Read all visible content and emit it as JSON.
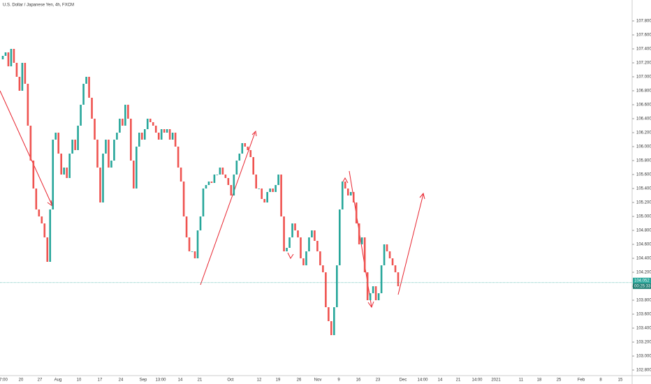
{
  "chart_data": {
    "type": "candle",
    "title": "U.S. Dollar / Japanese Yen, 4h, FXCM",
    "values": [
      107.25,
      107.3,
      107.35,
      107.15,
      107.4,
      107.2,
      107,
      106.8,
      107.2,
      106.9,
      106.3,
      105.8,
      105.4,
      105.1,
      105,
      104.9,
      104.7,
      104.35,
      105.1,
      106.1,
      106.2,
      105.9,
      105.6,
      105.7,
      105.55,
      105.9,
      106.1,
      105.95,
      106.3,
      106.6,
      106.9,
      107,
      106.7,
      106.4,
      106.1,
      105.7,
      105.2,
      105.9,
      106.1,
      105.7,
      105.8,
      106.1,
      106.2,
      106.4,
      106.3,
      106.6,
      106.4,
      105.8,
      105.4,
      106,
      106.2,
      106.1,
      106.25,
      106.4,
      106.35,
      106.3,
      106.2,
      106.1,
      106.25,
      106.2,
      106.25,
      106.1,
      106.2,
      106,
      105.7,
      105.5,
      105,
      104.7,
      104.5,
      104.5,
      104.4,
      104.8,
      105,
      105.4,
      105.45,
      105.5,
      105.48,
      105.6,
      105.6,
      105.7,
      105.6,
      105.55,
      105.45,
      105.3,
      105.6,
      105.8,
      105.9,
      106.05,
      106,
      105.95,
      105.85,
      105.6,
      105.4,
      105.4,
      105.25,
      105.2,
      105.35,
      105.4,
      105.35,
      105.45,
      105.6,
      105,
      104.5,
      104.55,
      104.7,
      104.9,
      104.8,
      104.7,
      104.4,
      104.3,
      104.5,
      104.7,
      104.8,
      104.65,
      104.5,
      104.3,
      104.2,
      103.7,
      103.5,
      103.3,
      103.7,
      104.3,
      105.1,
      105.5,
      105.4,
      105.3,
      105.35,
      105.2,
      104.9,
      104.6,
      104.7,
      104.2,
      103.8,
      103.9,
      104,
      103.8,
      103.9,
      104.3,
      104.6,
      104.5,
      104.4,
      104.3,
      104.2,
      104
    ],
    "up_color": "#26a69a",
    "down_color": "#ef5350",
    "last_price": 104.052,
    "countdown": "00:25:33",
    "last_price_color": "#26a69a",
    "ylim": [
      102.72,
      108.1
    ],
    "yticks": [
      {
        "value": 102.8,
        "label": "102.800"
      },
      {
        "value": 103,
        "label": "103.000"
      },
      {
        "value": 103.2,
        "label": "103.200"
      },
      {
        "value": 103.4,
        "label": "103.400"
      },
      {
        "value": 103.6,
        "label": "103.600"
      },
      {
        "value": 103.8,
        "label": "103.800"
      },
      {
        "value": 104,
        "label": "104.000"
      },
      {
        "value": 104.2,
        "label": "104.200"
      },
      {
        "value": 104.4,
        "label": "104.400"
      },
      {
        "value": 104.6,
        "label": "104.600"
      },
      {
        "value": 104.8,
        "label": "104.800"
      },
      {
        "value": 105,
        "label": "105.000"
      },
      {
        "value": 105.2,
        "label": "105.200"
      },
      {
        "value": 105.4,
        "label": "105.400"
      },
      {
        "value": 105.6,
        "label": "105.600"
      },
      {
        "value": 105.8,
        "label": "105.800"
      },
      {
        "value": 106,
        "label": "106.000"
      },
      {
        "value": 106.2,
        "label": "106.200"
      },
      {
        "value": 106.4,
        "label": "106.400"
      },
      {
        "value": 106.6,
        "label": "106.600"
      },
      {
        "value": 106.8,
        "label": "106.800"
      },
      {
        "value": 107,
        "label": "107.000"
      },
      {
        "value": 107.2,
        "label": "107.200"
      },
      {
        "value": 107.4,
        "label": "107.400"
      },
      {
        "value": 107.6,
        "label": "107.600"
      },
      {
        "value": 107.8,
        "label": "107.800"
      }
    ],
    "x_tick_labels": [
      "7:00",
      "20",
      "27",
      "Aug",
      "10",
      "17",
      "24",
      "Sep",
      "13:00",
      "14",
      "21",
      "Oct",
      "12",
      "19",
      "26",
      "Nov",
      "9",
      "16",
      "23",
      "Dec",
      "14:00",
      "14",
      "21",
      "14:00",
      "2021",
      "11",
      "18",
      "25",
      "Feb",
      "8",
      "15"
    ]
  }
}
